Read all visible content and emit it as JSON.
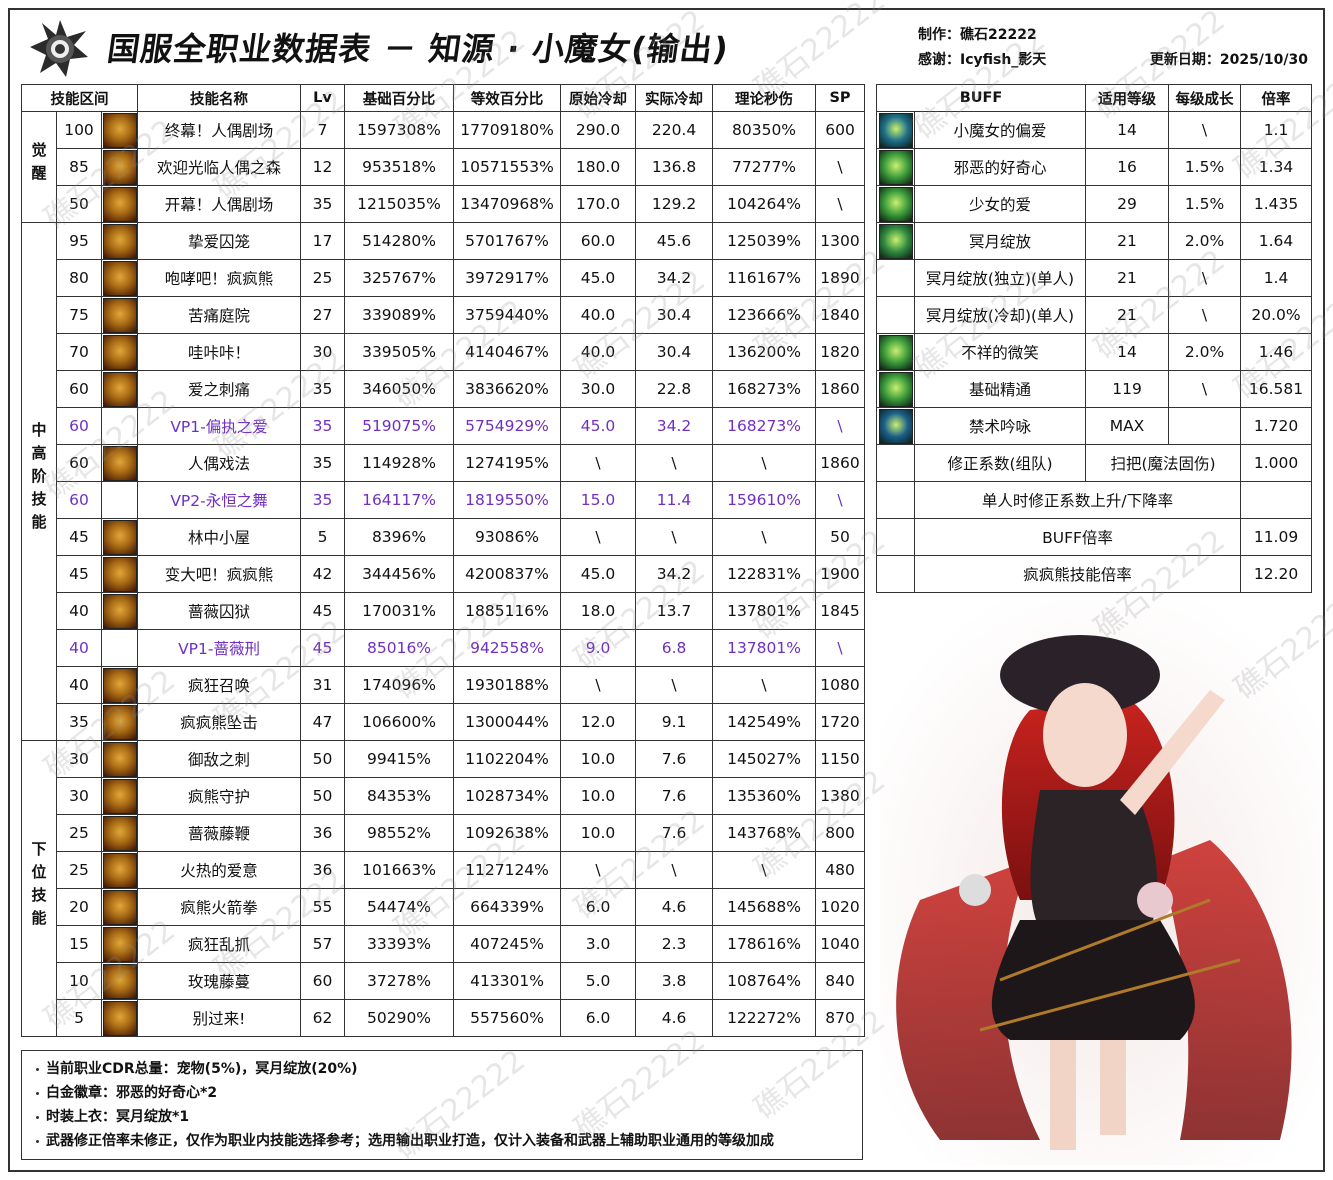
{
  "header": {
    "title": "国服全职业数据表 － 知源 · 小魔女(输出)",
    "author": "制作：礁石22222",
    "thanks": "感谢：Icyfish_影天",
    "updated": "更新日期：2025/10/30"
  },
  "watermark": "礁石22222",
  "skill_table": {
    "columns": [
      "技能区间",
      "技能名称",
      "Lv",
      "基础百分比",
      "等效百分比",
      "原始冷却",
      "实际冷却",
      "理论秒伤",
      "SP"
    ],
    "groups": [
      {
        "label": "觉醒",
        "rows": [
          {
            "cells": [
              "100",
              "终幕！人偶剧场",
              "7",
              "1597308%",
              "17709180%",
              "290.0",
              "220.4",
              "80350%",
              "600"
            ]
          },
          {
            "cells": [
              "85",
              "欢迎光临人偶之森",
              "12",
              "953518%",
              "10571553%",
              "180.0",
              "136.8",
              "77277%",
              "\\"
            ]
          },
          {
            "cells": [
              "50",
              "开幕！人偶剧场",
              "35",
              "1215035%",
              "13470968%",
              "170.0",
              "129.2",
              "104264%",
              "\\"
            ]
          }
        ]
      },
      {
        "label": "中高阶技能",
        "rows": [
          {
            "cells": [
              "95",
              "挚爱囚笼",
              "17",
              "514280%",
              "5701767%",
              "60.0",
              "45.6",
              "125039%",
              "1300"
            ]
          },
          {
            "cells": [
              "80",
              "咆哮吧！疯疯熊",
              "25",
              "325767%",
              "3972917%",
              "45.0",
              "34.2",
              "116167%",
              "1890"
            ]
          },
          {
            "cells": [
              "75",
              "苦痛庭院",
              "27",
              "339089%",
              "3759440%",
              "40.0",
              "30.4",
              "123666%",
              "1840"
            ]
          },
          {
            "cells": [
              "70",
              "哇咔咔！",
              "30",
              "339505%",
              "4140467%",
              "40.0",
              "30.4",
              "136200%",
              "1820"
            ]
          },
          {
            "cells": [
              "60",
              "爱之刺痛",
              "35",
              "346050%",
              "3836620%",
              "30.0",
              "22.8",
              "168273%",
              "1860"
            ]
          },
          {
            "cells": [
              "60",
              "VP1-偏执之爱",
              "35",
              "519075%",
              "5754929%",
              "45.0",
              "34.2",
              "168273%",
              "\\"
            ],
            "color": "#7030c0"
          },
          {
            "cells": [
              "60",
              "人偶戏法",
              "35",
              "114928%",
              "1274195%",
              "\\",
              "\\",
              "\\",
              "1860"
            ]
          },
          {
            "cells": [
              "60",
              "VP2-永恒之舞",
              "35",
              "164117%",
              "1819550%",
              "15.0",
              "11.4",
              "159610%",
              "\\"
            ],
            "color": "#7030c0"
          },
          {
            "cells": [
              "45",
              "林中小屋",
              "5",
              "8396%",
              "93086%",
              "\\",
              "\\",
              "\\",
              "50"
            ]
          },
          {
            "cells": [
              "45",
              "变大吧！疯疯熊",
              "42",
              "344456%",
              "4200837%",
              "45.0",
              "34.2",
              "122831%",
              "1900"
            ]
          },
          {
            "cells": [
              "40",
              "蔷薇囚狱",
              "45",
              "170031%",
              "1885116%",
              "18.0",
              "13.7",
              "137801%",
              "1845"
            ]
          },
          {
            "cells": [
              "40",
              "VP1-蔷薇刑",
              "45",
              "85016%",
              "942558%",
              "9.0",
              "6.8",
              "137801%",
              "\\"
            ],
            "color": "#7030c0"
          },
          {
            "cells": [
              "40",
              "疯狂召唤",
              "31",
              "174096%",
              "1930188%",
              "\\",
              "\\",
              "\\",
              "1080"
            ]
          },
          {
            "cells": [
              "35",
              "疯疯熊坠击",
              "47",
              "106600%",
              "1300044%",
              "12.0",
              "9.1",
              "142549%",
              "1720"
            ]
          }
        ]
      },
      {
        "label": "下位技能",
        "rows": [
          {
            "cells": [
              "30",
              "御敌之刺",
              "50",
              "99415%",
              "1102204%",
              "10.0",
              "7.6",
              "145027%",
              "1150"
            ]
          },
          {
            "cells": [
              "30",
              "疯熊守护",
              "50",
              "84353%",
              "1028734%",
              "10.0",
              "7.6",
              "135360%",
              "1380"
            ]
          },
          {
            "cells": [
              "25",
              "蔷薇藤鞭",
              "36",
              "98552%",
              "1092638%",
              "10.0",
              "7.6",
              "143768%",
              "800"
            ]
          },
          {
            "cells": [
              "25",
              "火热的爱意",
              "36",
              "101663%",
              "1127124%",
              "\\",
              "\\",
              "\\",
              "480"
            ]
          },
          {
            "cells": [
              "20",
              "疯熊火箭拳",
              "55",
              "54474%",
              "664339%",
              "6.0",
              "4.6",
              "145688%",
              "1020"
            ]
          },
          {
            "cells": [
              "15",
              "疯狂乱抓",
              "57",
              "33393%",
              "407245%",
              "3.0",
              "2.3",
              "178616%",
              "1040"
            ]
          },
          {
            "cells": [
              "10",
              "玫瑰藤蔓",
              "60",
              "37278%",
              "413301%",
              "5.0",
              "3.8",
              "108764%",
              "840"
            ]
          },
          {
            "cells": [
              "5",
              "别过来!",
              "62",
              "50290%",
              "557560%",
              "6.0",
              "4.6",
              "122272%",
              "870"
            ]
          }
        ]
      }
    ]
  },
  "buff_table": {
    "columns": [
      "BUFF",
      "适用等级",
      "每级成长",
      "倍率"
    ],
    "rows": [
      [
        "小魔女的偏爱",
        "14",
        "\\",
        "1.1"
      ],
      [
        "邪恶的好奇心",
        "16",
        "1.5%",
        "1.34"
      ],
      [
        "少女的爱",
        "29",
        "1.5%",
        "1.435"
      ],
      [
        "冥月绽放",
        "21",
        "2.0%",
        "1.64"
      ],
      [
        "冥月绽放(独立)(单人)",
        "21",
        "\\",
        "1.4"
      ],
      [
        "冥月绽放(冷却)(单人)",
        "21",
        "\\",
        "20.0%"
      ],
      [
        "不祥的微笑",
        "14",
        "2.0%",
        "1.46"
      ],
      [
        "基础精通",
        "119",
        "\\",
        "16.581"
      ],
      [
        "禁术吟咏",
        "MAX",
        "",
        "1.720"
      ]
    ],
    "correction": {
      "label": "修正系数(组队)",
      "type": "扫把(魔法固伤)",
      "value": "1.000"
    },
    "summary": [
      {
        "label": "单人时修正系数上升/下降率"
      },
      {
        "label": "BUFF倍率",
        "value": "11.09"
      },
      {
        "label": "疯疯熊技能倍率",
        "value": "12.20"
      }
    ]
  },
  "notes": [
    "当前职业CDR总量：宠物(5%)，冥月绽放(20%)",
    "白金徽章：邪恶的好奇心*2",
    "时装上衣：冥月绽放*1",
    "武器修正倍率未修正，仅作为职业内技能选择参考；选用输出职业打造，仅计入装备和武器上辅助职业通用的等级加成"
  ]
}
